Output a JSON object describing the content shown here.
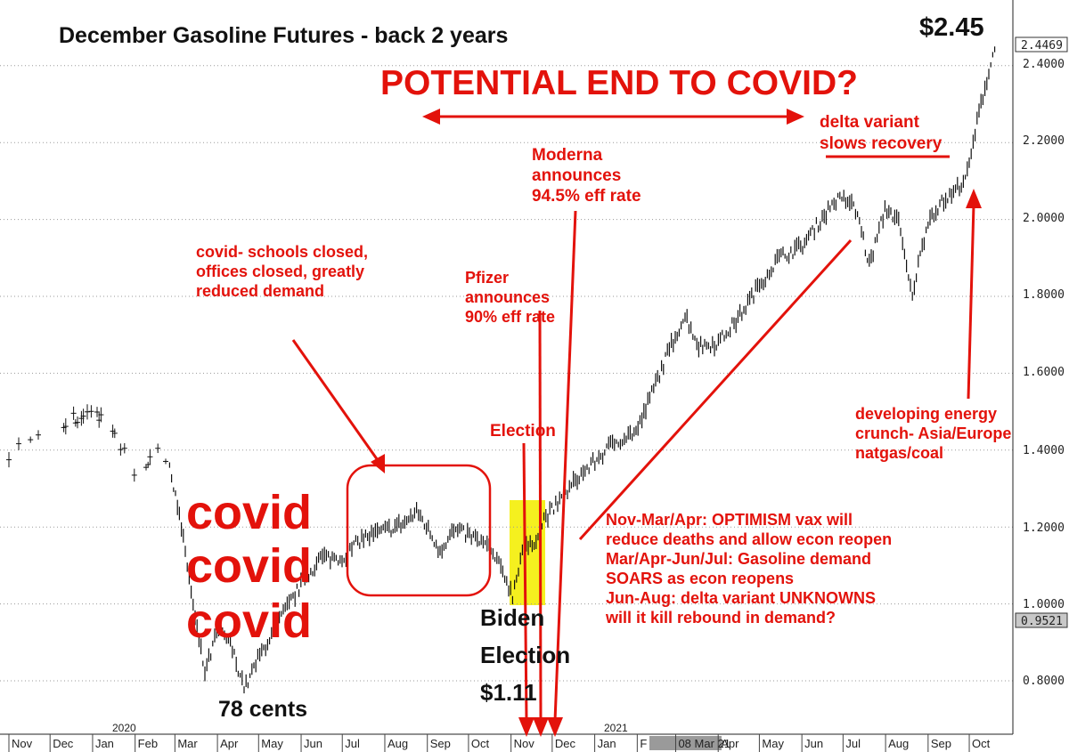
{
  "chart_data": {
    "type": "bar",
    "title": "December Gasoline Futures - back 2 years",
    "y_axis": {
      "position": "right",
      "range": [
        0.71,
        2.51
      ],
      "ticks": [
        "0.8000",
        "1.0000",
        "1.2000",
        "1.4000",
        "1.6000",
        "1.8000",
        "2.0000",
        "2.2000",
        "2.4000"
      ],
      "last_price_label": "2.4469",
      "flag_label": "0.9521"
    },
    "x_axis": {
      "months": [
        "Nov",
        "Dec",
        "Jan",
        "Feb",
        "Mar",
        "Apr",
        "May",
        "Jun",
        "Jul",
        "Aug",
        "Sep",
        "Oct",
        "Nov",
        "Dec",
        "Jan",
        "F",
        "08 Mar 21",
        "Apr",
        "May",
        "Jun",
        "Jul",
        "Aug",
        "Sep",
        "Oct"
      ],
      "years": [
        "2020",
        "2021"
      ]
    },
    "grid": true,
    "series": [
      {
        "style": "daily-ohlc-bars",
        "points": [
          [
            "2019-11-01",
            1.39
          ],
          [
            "2019-11-15",
            1.43
          ],
          [
            "2019-12-01",
            1.45
          ],
          [
            "2019-12-15",
            1.48
          ],
          [
            "2020-01-01",
            1.5
          ],
          [
            "2020-01-10",
            1.48
          ],
          [
            "2020-01-20",
            1.42
          ],
          [
            "2020-02-01",
            1.34
          ],
          [
            "2020-02-12",
            1.38
          ],
          [
            "2020-02-20",
            1.42
          ],
          [
            "2020-03-01",
            1.3
          ],
          [
            "2020-03-10",
            1.1
          ],
          [
            "2020-03-16",
            0.95
          ],
          [
            "2020-03-23",
            0.82
          ],
          [
            "2020-04-01",
            0.93
          ],
          [
            "2020-04-10",
            0.9
          ],
          [
            "2020-04-21",
            0.78
          ],
          [
            "2020-05-01",
            0.86
          ],
          [
            "2020-05-15",
            0.95
          ],
          [
            "2020-06-01",
            1.05
          ],
          [
            "2020-06-15",
            1.12
          ],
          [
            "2020-07-01",
            1.12
          ],
          [
            "2020-07-15",
            1.17
          ],
          [
            "2020-08-01",
            1.19
          ],
          [
            "2020-08-15",
            1.21
          ],
          [
            "2020-08-25",
            1.24
          ],
          [
            "2020-09-10",
            1.14
          ],
          [
            "2020-09-20",
            1.19
          ],
          [
            "2020-10-01",
            1.18
          ],
          [
            "2020-10-15",
            1.15
          ],
          [
            "2020-10-28",
            1.07
          ],
          [
            "2020-11-02",
            1.02
          ],
          [
            "2020-11-09",
            1.14
          ],
          [
            "2020-11-16",
            1.15
          ],
          [
            "2020-11-25",
            1.22
          ],
          [
            "2020-12-10",
            1.28
          ],
          [
            "2020-12-20",
            1.33
          ],
          [
            "2021-01-01",
            1.37
          ],
          [
            "2021-01-15",
            1.42
          ],
          [
            "2021-02-01",
            1.45
          ],
          [
            "2021-02-15",
            1.58
          ],
          [
            "2021-03-01",
            1.7
          ],
          [
            "2021-03-08",
            1.75
          ],
          [
            "2021-03-18",
            1.67
          ],
          [
            "2021-04-01",
            1.68
          ],
          [
            "2021-04-15",
            1.74
          ],
          [
            "2021-05-01",
            1.83
          ],
          [
            "2021-05-15",
            1.9
          ],
          [
            "2021-06-01",
            1.93
          ],
          [
            "2021-06-15",
            2.0
          ],
          [
            "2021-06-25",
            2.05
          ],
          [
            "2021-07-05",
            2.05
          ],
          [
            "2021-07-12",
            2.01
          ],
          [
            "2021-07-20",
            1.88
          ],
          [
            "2021-08-01",
            2.03
          ],
          [
            "2021-08-10",
            2.0
          ],
          [
            "2021-08-20",
            1.8
          ],
          [
            "2021-09-01",
            2.0
          ],
          [
            "2021-09-10",
            2.04
          ],
          [
            "2021-09-20",
            2.07
          ],
          [
            "2021-09-30",
            2.12
          ],
          [
            "2021-10-05",
            2.22
          ],
          [
            "2021-10-10",
            2.31
          ],
          [
            "2021-10-15",
            2.38
          ],
          [
            "2021-10-20",
            2.45
          ]
        ]
      }
    ],
    "highlights": [
      {
        "x_from": "2020-10-26",
        "x_to": "2020-11-06",
        "y_from": 0.95,
        "y_to": 1.26,
        "color": "#f5f01f"
      }
    ]
  },
  "annotations": {
    "price_top": "$2.45",
    "headline": "POTENTIAL END TO COVID?",
    "delta": [
      "delta variant",
      "slows recovery"
    ],
    "moderna": [
      "Moderna",
      "announces",
      "94.5% eff rate"
    ],
    "covid_schools": [
      "covid- schools closed,",
      "offices closed, greatly",
      "reduced demand"
    ],
    "pfizer": [
      "Pfizer",
      "announces",
      "90% eff rate"
    ],
    "election": "Election",
    "energy": [
      "developing energy",
      "crunch- Asia/Europe",
      "natgas/coal"
    ],
    "covid_big": [
      "covid",
      "covid",
      "covid"
    ],
    "optimism": [
      "Nov-Mar/Apr: OPTIMISM vax will",
      "reduce deaths and allow econ reopen",
      "Mar/Apr-Jun/Jul: Gasoline demand",
      "SOARS as econ reopens",
      "Jun-Aug: delta variant UNKNOWNS",
      "will it kill rebound in demand?"
    ],
    "biden": [
      "Biden",
      "Election",
      "$1.11"
    ],
    "cents": "78 cents"
  },
  "colors": {
    "accent_red": "#e3120b",
    "highlight_yellow": "#f5f01f",
    "bar": "#111111"
  }
}
